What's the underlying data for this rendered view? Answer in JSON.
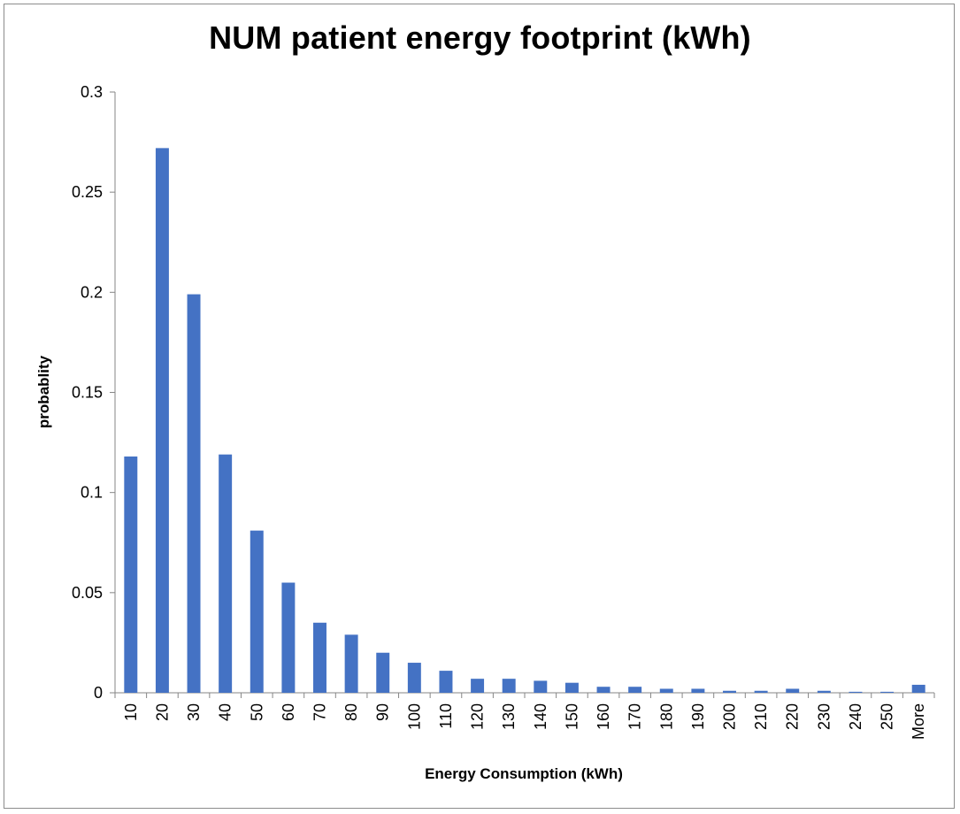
{
  "chart_data": {
    "type": "bar",
    "title": "NUM patient energy footprint (kWh)",
    "xlabel": "Energy Consumption  (kWh)",
    "ylabel": "probablity",
    "ylim": [
      0,
      0.3
    ],
    "yticks": [
      "0",
      "0.05",
      "0.1",
      "0.15",
      "0.2",
      "0.25",
      "0.3"
    ],
    "categories": [
      "10",
      "20",
      "30",
      "40",
      "50",
      "60",
      "70",
      "80",
      "90",
      "100",
      "110",
      "120",
      "130",
      "140",
      "150",
      "160",
      "170",
      "180",
      "190",
      "200",
      "210",
      "220",
      "230",
      "240",
      "250",
      "More"
    ],
    "values": [
      0.118,
      0.272,
      0.199,
      0.119,
      0.081,
      0.055,
      0.035,
      0.029,
      0.02,
      0.015,
      0.011,
      0.007,
      0.007,
      0.006,
      0.005,
      0.003,
      0.003,
      0.002,
      0.002,
      0.001,
      0.001,
      0.002,
      0.001,
      0.0005,
      0.0005,
      0.004
    ],
    "bar_color": "#4472c4",
    "grid": false,
    "legend": "none"
  }
}
